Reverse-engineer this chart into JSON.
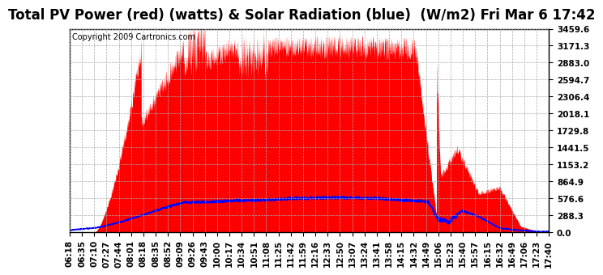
{
  "title": "Total PV Power (red) (watts) & Solar Radiation (blue)  (W/m2) Fri Mar 6 17:42",
  "copyright": "Copyright 2009 Cartronics.com",
  "ymax": 3459.6,
  "yticks": [
    0.0,
    288.3,
    576.6,
    864.9,
    1153.2,
    1441.5,
    1729.8,
    2018.1,
    2306.4,
    2594.7,
    2883.0,
    3171.3,
    3459.6
  ],
  "ytick_labels": [
    "0.0",
    "288.3",
    "576.6",
    "864.9",
    "1153.2",
    "1441.5",
    "1729.8",
    "2018.1",
    "2306.4",
    "2594.7",
    "2883.0",
    "3171.3",
    "3459.6"
  ],
  "xtick_labels": [
    "06:18",
    "06:35",
    "07:10",
    "07:27",
    "07:44",
    "08:01",
    "08:18",
    "08:35",
    "08:52",
    "09:09",
    "09:26",
    "09:43",
    "10:00",
    "10:17",
    "10:34",
    "10:51",
    "11:08",
    "11:25",
    "11:42",
    "11:59",
    "12:16",
    "12:33",
    "12:50",
    "13:07",
    "13:24",
    "13:41",
    "13:58",
    "14:15",
    "14:32",
    "14:49",
    "15:06",
    "15:23",
    "15:40",
    "15:57",
    "16:15",
    "16:32",
    "16:49",
    "17:06",
    "17:23",
    "17:40"
  ],
  "bg_color": "#ffffff",
  "plot_bg_color": "#ffffff",
  "grid_color": "#aaaaaa",
  "red_color": "#ff0000",
  "blue_color": "#0000ff",
  "title_fontsize": 12,
  "tick_fontsize": 7.5,
  "copyright_fontsize": 7
}
